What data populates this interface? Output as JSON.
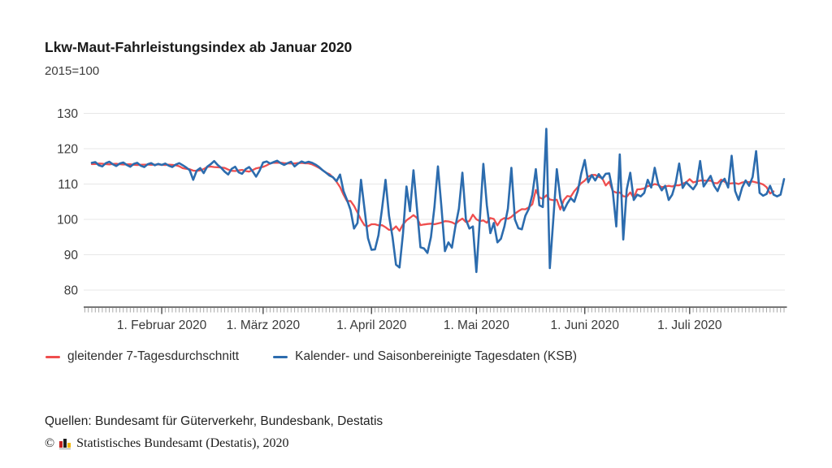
{
  "header": {
    "title": "Lkw-Maut-Fahrleistungsindex ab Januar 2020",
    "subtitle": "2015=100"
  },
  "footer": {
    "sources": "Quellen: Bundesamt für Güterverkehr, Bundesbank, Destatis",
    "copyright_symbol": "©",
    "copyright_text": "Statistisches Bundesamt (Destatis), 2020",
    "logo_colors": [
      "#c4221f",
      "#1f1f1f",
      "#f2b700",
      "#9a9a9a"
    ]
  },
  "chart_data": {
    "type": "line",
    "title": "Lkw-Maut-Fahrleistungsindex ab Januar 2020",
    "subtitle": "2015=100",
    "grid": "horizontal",
    "legend_position": "bottom",
    "ylim": [
      75,
      132
    ],
    "yticks": [
      80,
      90,
      100,
      110,
      120,
      130
    ],
    "x_start_date": "2020-01-12",
    "x_end_date": "2020-07-28",
    "x_frequency": "daily",
    "xtick_labels": [
      "1. Februar 2020",
      "1. März 2020",
      "1. April 2020",
      "1. Mai 2020",
      "1. Juni 2020",
      "1. Juli 2020"
    ],
    "month_tick_indices": [
      20,
      49,
      80,
      110,
      141,
      171
    ],
    "series": [
      {
        "name": "gleitender 7-Tagesdurchschnitt",
        "color": "#ef4e4e",
        "derived": "7-day centered moving average of KSB series, ends 3 days before last daily value"
      },
      {
        "name": "Kalender- und Saisonbereinigte Tagesdaten (KSB)",
        "color": "#2c6cae",
        "values": [
          116.0,
          116.2,
          115.3,
          115.0,
          115.9,
          116.3,
          115.6,
          115.1,
          115.8,
          116.1,
          115.4,
          114.9,
          115.7,
          116.0,
          115.2,
          114.8,
          115.6,
          115.9,
          115.3,
          115.7,
          115.4,
          115.8,
          115.2,
          114.8,
          115.5,
          115.9,
          115.3,
          114.7,
          113.9,
          111.2,
          113.8,
          114.5,
          113.1,
          114.9,
          115.6,
          116.5,
          115.4,
          114.6,
          113.5,
          112.7,
          114.3,
          114.9,
          113.3,
          112.9,
          114.2,
          114.8,
          113.6,
          112.1,
          113.8,
          116.1,
          116.4,
          115.8,
          116.2,
          116.6,
          115.9,
          115.4,
          115.9,
          116.3,
          115.0,
          115.8,
          116.4,
          116.0,
          116.3,
          116.0,
          115.5,
          114.8,
          113.9,
          113.2,
          112.4,
          111.9,
          110.8,
          112.7,
          108.0,
          105.5,
          102.7,
          97.4,
          99.0,
          111.2,
          103.0,
          94.7,
          91.4,
          91.5,
          95.5,
          103.0,
          111.2,
          101.0,
          95.0,
          87.2,
          86.4,
          96.0,
          109.3,
          102.3,
          113.9,
          103.0,
          92.1,
          91.8,
          90.5,
          95.0,
          103.5,
          115.0,
          103.5,
          91.0,
          93.5,
          92.0,
          98.0,
          103.0,
          113.2,
          100.0,
          97.4,
          98.0,
          85.1,
          100.0,
          115.7,
          104.0,
          96.1,
          99.0,
          93.5,
          94.5,
          98.0,
          103.0,
          114.6,
          100.0,
          97.5,
          97.2,
          101.0,
          103.0,
          107.0,
          114.2,
          104.0,
          103.5,
          125.6,
          86.2,
          100.0,
          114.2,
          106.0,
          102.5,
          104.5,
          106.0,
          105.0,
          108.0,
          113.0,
          116.8,
          110.5,
          112.5,
          111.0,
          112.8,
          111.5,
          112.9,
          113.0,
          107.9,
          98.0,
          118.4,
          94.3,
          108.5,
          113.2,
          105.5,
          107.0,
          106.5,
          107.5,
          111.2,
          109.0,
          114.6,
          110.0,
          108.2,
          109.5,
          105.5,
          107.0,
          110.3,
          115.8,
          108.9,
          110.5,
          109.5,
          108.5,
          110.0,
          116.5,
          109.3,
          110.8,
          112.3,
          109.5,
          108.0,
          110.5,
          111.5,
          109.0,
          118.0,
          108.0,
          105.5,
          109.0,
          111.0,
          109.5,
          112.0,
          119.3,
          107.5,
          106.7,
          107.2,
          109.5,
          107.0,
          106.5,
          107.0,
          111.4
        ]
      }
    ]
  }
}
